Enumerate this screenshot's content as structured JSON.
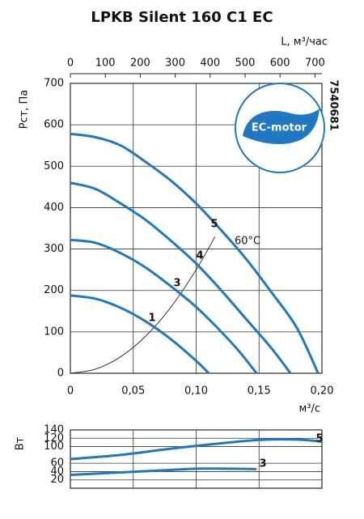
{
  "title": "LPKB Silent 160 C1 EC",
  "code": "7540681",
  "logo_text": "EC-motor",
  "annotation": "60°C",
  "chart_data": [
    {
      "type": "line",
      "x_label": "м³/с",
      "y_label": "Pст, Па",
      "x2_label": "L, м³/час",
      "xlim": [
        0,
        0.2
      ],
      "xticks": [
        0,
        {
          "value": 0.05,
          "label": "0,05"
        },
        {
          "value": 0.1,
          "label": "0,10"
        },
        {
          "value": 0.15,
          "label": "0,15"
        },
        {
          "value": 0.2,
          "label": "0,20"
        }
      ],
      "x2lim": [
        0,
        720
      ],
      "x2ticks": [
        0,
        100,
        200,
        300,
        400,
        500,
        600,
        700
      ],
      "ylim": [
        0,
        700
      ],
      "yticks": [
        0,
        100,
        200,
        300,
        400,
        500,
        600,
        700
      ],
      "grid": true,
      "series": [
        {
          "name": "5",
          "color": "#1f78c1",
          "x": [
            0,
            0.02,
            0.04,
            0.06,
            0.08,
            0.1,
            0.12,
            0.14,
            0.16,
            0.18,
            0.197
          ],
          "values": [
            578,
            570,
            550,
            510,
            465,
            410,
            345,
            275,
            195,
            110,
            0
          ]
        },
        {
          "name": "4",
          "color": "#1f78c1",
          "x": [
            0,
            0.02,
            0.04,
            0.06,
            0.08,
            0.1,
            0.12,
            0.14,
            0.16,
            0.175
          ],
          "values": [
            460,
            445,
            410,
            370,
            320,
            265,
            200,
            130,
            60,
            0
          ]
        },
        {
          "name": "3",
          "color": "#1f78c1",
          "x": [
            0,
            0.02,
            0.04,
            0.06,
            0.08,
            0.1,
            0.12,
            0.135,
            0.148
          ],
          "values": [
            322,
            315,
            290,
            255,
            210,
            160,
            100,
            50,
            0
          ]
        },
        {
          "name": "1",
          "color": "#1f78c1",
          "x": [
            0,
            0.02,
            0.04,
            0.06,
            0.08,
            0.1,
            0.11
          ],
          "values": [
            188,
            180,
            158,
            125,
            82,
            30,
            0
          ]
        }
      ],
      "system_curve": {
        "color": "#333333",
        "x": [
          0,
          0.02,
          0.04,
          0.06,
          0.08,
          0.1,
          0.115
        ],
        "values": [
          0,
          10,
          40,
          90,
          160,
          250,
          330
        ]
      }
    },
    {
      "type": "line",
      "y_label": "Вт",
      "xlim": [
        0,
        0.2
      ],
      "ylim": [
        0,
        140
      ],
      "yticks": [
        20,
        40,
        60,
        100,
        120,
        140
      ],
      "grid": true,
      "series": [
        {
          "name": "5",
          "color": "#1f78c1",
          "x": [
            0,
            0.04,
            0.08,
            0.12,
            0.15,
            0.18,
            0.2
          ],
          "values": [
            70,
            80,
            95,
            108,
            116,
            117,
            112
          ]
        },
        {
          "name": "3",
          "color": "#1f78c1",
          "x": [
            0,
            0.04,
            0.08,
            0.1,
            0.12,
            0.148
          ],
          "values": [
            32,
            38,
            44,
            47,
            47,
            46
          ]
        }
      ]
    }
  ]
}
